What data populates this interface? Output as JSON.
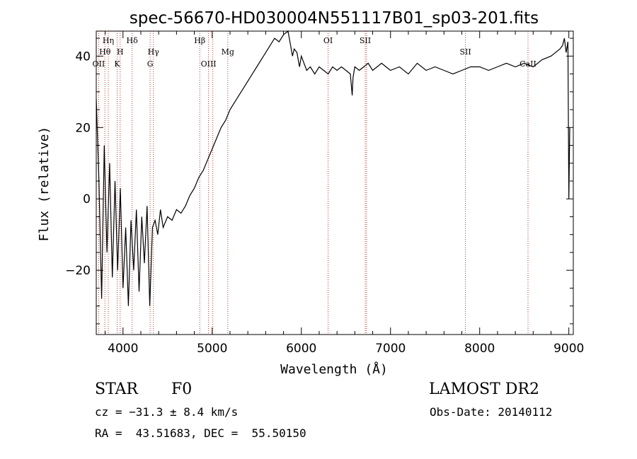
{
  "chart_data": {
    "type": "line",
    "title": "spec-56670-HD030004N551117B01_sp03-201.fits",
    "xlabel": "Wavelength (Å)",
    "ylabel": "Flux (relative)",
    "xlim": [
      3700,
      9050
    ],
    "ylim": [
      -38,
      47
    ],
    "xticks": [
      4000,
      5000,
      6000,
      7000,
      8000,
      9000
    ],
    "yticks": [
      -20,
      0,
      20,
      40
    ],
    "xtick_labels": [
      "4000",
      "5000",
      "6000",
      "7000",
      "8000",
      "9000"
    ],
    "ytick_labels": [
      "−20",
      "0",
      "20",
      "40"
    ],
    "grid": false,
    "line_color": "#000000",
    "marker_color": "#b03a2e",
    "series": [
      {
        "x": [
          3700,
          3730,
          3760,
          3790,
          3820,
          3850,
          3880,
          3910,
          3940,
          3970,
          4000,
          4030,
          4060,
          4090,
          4120,
          4150,
          4180,
          4210,
          4240,
          4270,
          4300,
          4330,
          4360,
          4390,
          4420,
          4450,
          4500,
          4550,
          4600,
          4650,
          4700,
          4750,
          4800,
          4850,
          4900,
          4950,
          5000,
          5050,
          5100,
          5150,
          5200,
          5250,
          5300,
          5350,
          5400,
          5450,
          5500,
          5550,
          5600,
          5650,
          5700,
          5750,
          5800,
          5850,
          5880,
          5900,
          5920,
          5950,
          5980,
          6000,
          6030,
          6060,
          6100,
          6150,
          6200,
          6250,
          6300,
          6350,
          6400,
          6450,
          6500,
          6550,
          6570,
          6580,
          6600,
          6650,
          6700,
          6750,
          6800,
          6850,
          6900,
          6950,
          7000,
          7100,
          7200,
          7300,
          7400,
          7500,
          7600,
          7700,
          7800,
          7900,
          8000,
          8100,
          8200,
          8300,
          8400,
          8500,
          8600,
          8700,
          8800,
          8850,
          8900,
          8930,
          8950,
          8970,
          8990,
          9000,
          9010
        ],
        "y": [
          28,
          5,
          -28,
          15,
          -15,
          10,
          -22,
          5,
          -20,
          3,
          -25,
          -8,
          -30,
          -6,
          -20,
          -3,
          -26,
          -5,
          -18,
          -2,
          -30,
          -8,
          -6,
          -10,
          -3,
          -8,
          -5,
          -6,
          -3,
          -4,
          -2,
          1,
          3,
          6,
          8,
          11,
          14,
          17,
          20,
          22,
          25,
          27,
          29,
          31,
          33,
          35,
          37,
          39,
          41,
          43,
          45,
          44,
          46,
          47,
          43,
          40,
          42,
          41,
          37,
          40,
          38,
          36,
          37,
          35,
          37,
          36,
          35,
          37,
          36,
          37,
          36,
          35,
          29,
          34,
          37,
          36,
          37,
          38,
          36,
          37,
          38,
          37,
          36,
          37,
          35,
          38,
          36,
          37,
          36,
          35,
          36,
          37,
          37,
          36,
          37,
          38,
          37,
          38,
          37,
          39,
          40,
          41,
          42,
          43,
          45,
          41,
          44,
          0,
          20
        ]
      }
    ],
    "line_markers": [
      {
        "label": "OII",
        "x": 3727,
        "row": 3
      },
      {
        "label": "Hθ",
        "x": 3797,
        "row": 2
      },
      {
        "label": "Hη",
        "x": 3835,
        "row": 1
      },
      {
        "label": "K",
        "x": 3934,
        "row": 3
      },
      {
        "label": "H",
        "x": 3968,
        "row": 2
      },
      {
        "label": "Hδ",
        "x": 4102,
        "row": 1
      },
      {
        "label": "G",
        "x": 4304,
        "row": 3
      },
      {
        "label": "Hγ",
        "x": 4341,
        "row": 2
      },
      {
        "label": "Hβ",
        "x": 4861,
        "row": 1
      },
      {
        "label": "OIII",
        "x": 4959,
        "row": 3
      },
      {
        "label": "OIII",
        "x": 5007,
        "row": 3,
        "hidden": true
      },
      {
        "label": "Mg",
        "x": 5175,
        "row": 2
      },
      {
        "label": "OI",
        "x": 6300,
        "row": 1
      },
      {
        "label": "SII",
        "x": 6716,
        "row": 1
      },
      {
        "label": "SII",
        "x": 6731,
        "row": 1,
        "hidden": true
      },
      {
        "label": "SII",
        "x": 7840,
        "row": 2
      },
      {
        "label": "CaII",
        "x": 8542,
        "row": 3
      }
    ]
  },
  "info": {
    "object_class": "STAR",
    "subclass": "F0",
    "survey": "LAMOST DR2",
    "cz": "cz = −31.3 ± 8.4 km/s",
    "obs_date": "Obs-Date: 20140112",
    "coords": "RA =  43.51683, DEC =  55.50150"
  }
}
